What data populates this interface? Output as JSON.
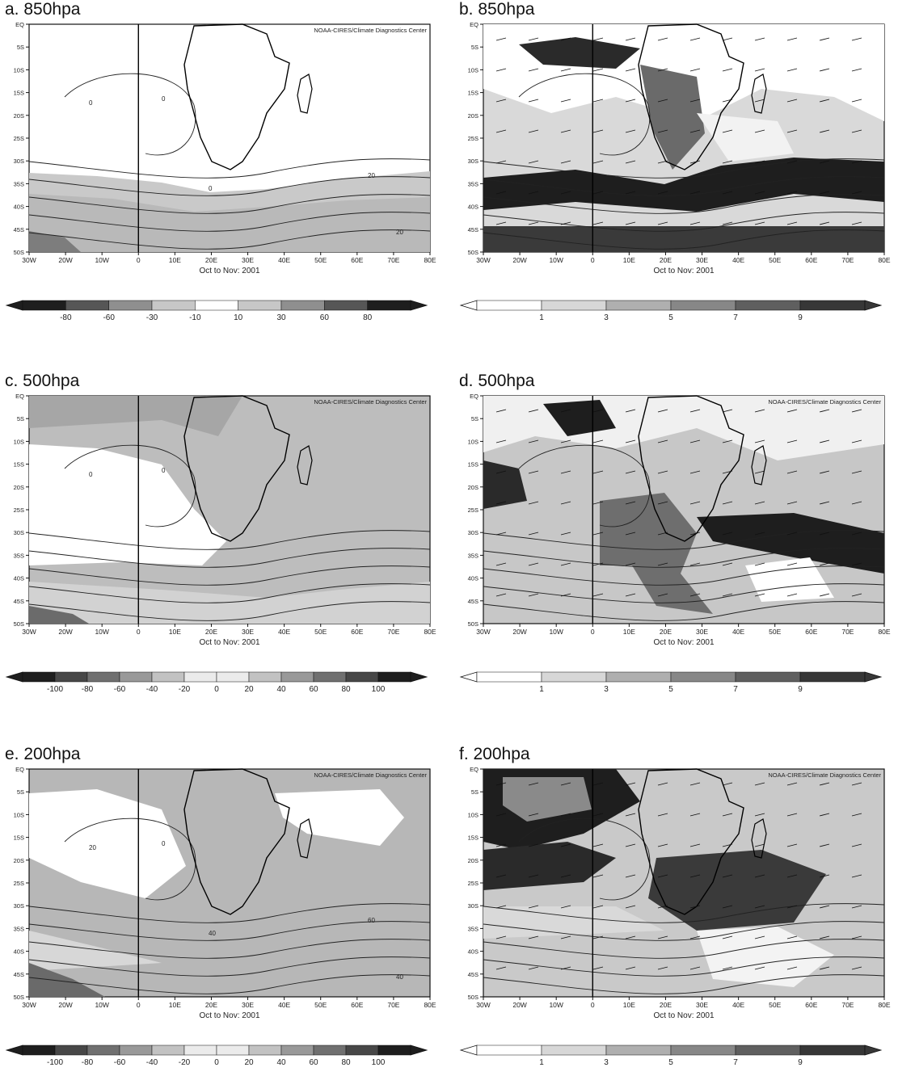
{
  "chart_data": [
    {
      "id": "a",
      "type": "heatmap",
      "title": "a. 850hpa",
      "subtitle": "Oct to Nov: 2001",
      "credit": "NOAA-CIRES/Climate Diagnostics Center",
      "x_ticks": [
        "30W",
        "20W",
        "10W",
        "0",
        "10E",
        "20E",
        "30E",
        "40E",
        "50E",
        "60E",
        "70E",
        "80E"
      ],
      "y_ticks": [
        "EQ",
        "5S",
        "10S",
        "15S",
        "20S",
        "25S",
        "30S",
        "35S",
        "40S",
        "45S",
        "50S"
      ],
      "colorbar": {
        "labels": [
          "-80",
          "-60",
          "-30",
          "-10",
          "10",
          "30",
          "60",
          "80"
        ],
        "values": [
          -80,
          -60,
          -30,
          -10,
          10,
          30,
          60,
          80
        ]
      },
      "contour_labels": [
        "0",
        "0",
        "0",
        "20",
        "20"
      ],
      "palette": "diverging"
    },
    {
      "id": "b",
      "type": "heatmap",
      "title": "b. 850hpa",
      "subtitle": "Oct to Nov: 2001",
      "x_ticks": [
        "30W",
        "20W",
        "10W",
        "0",
        "10E",
        "20E",
        "30E",
        "40E",
        "50E",
        "60E",
        "70E",
        "80E"
      ],
      "y_ticks": [
        "EQ",
        "5S",
        "10S",
        "15S",
        "20S",
        "25S",
        "30S",
        "35S",
        "40S",
        "45S",
        "50S"
      ],
      "colorbar": {
        "labels": [
          "1",
          "3",
          "5",
          "7",
          "9"
        ],
        "values": [
          1,
          3,
          5,
          7,
          9
        ]
      },
      "palette": "sequential"
    },
    {
      "id": "c",
      "type": "heatmap",
      "title": "c. 500hpa",
      "subtitle": "Oct to Nov: 2001",
      "credit": "NOAA-CIRES/Climate Diagnostics Center",
      "x_ticks": [
        "30W",
        "20W",
        "10W",
        "0",
        "10E",
        "20E",
        "30E",
        "40E",
        "50E",
        "60E",
        "70E",
        "80E"
      ],
      "y_ticks": [
        "EQ",
        "5S",
        "10S",
        "15S",
        "20S",
        "25S",
        "30S",
        "35S",
        "40S",
        "45S",
        "50S"
      ],
      "colorbar": {
        "labels": [
          "-100",
          "-80",
          "-60",
          "-40",
          "-20",
          "0",
          "20",
          "40",
          "60",
          "80",
          "100"
        ],
        "values": [
          -100,
          -80,
          -60,
          -40,
          -20,
          0,
          20,
          40,
          60,
          80,
          100
        ]
      },
      "contour_labels": [
        "0",
        "0"
      ],
      "palette": "diverging"
    },
    {
      "id": "d",
      "type": "heatmap",
      "title": "d. 500hpa",
      "subtitle": "Oct to Nov: 2001",
      "credit": "NOAA-CIRES/Climate Diagnostics Center",
      "x_ticks": [
        "30W",
        "20W",
        "10W",
        "0",
        "10E",
        "20E",
        "30E",
        "40E",
        "50E",
        "60E",
        "70E",
        "80E"
      ],
      "y_ticks": [
        "EQ",
        "5S",
        "10S",
        "15S",
        "20S",
        "25S",
        "30S",
        "35S",
        "40S",
        "45S",
        "50S"
      ],
      "colorbar": {
        "labels": [
          "1",
          "3",
          "5",
          "7",
          "9"
        ],
        "values": [
          1,
          3,
          5,
          7,
          9
        ]
      },
      "palette": "sequential"
    },
    {
      "id": "e",
      "type": "heatmap",
      "title": "e. 200hpa",
      "subtitle": "Oct to Nov: 2001",
      "credit": "NOAA-CIRES/Climate Diagnostics Center",
      "x_ticks": [
        "30W",
        "20W",
        "10W",
        "0",
        "10E",
        "20E",
        "30E",
        "40E",
        "50E",
        "60E",
        "70E",
        "80E"
      ],
      "y_ticks": [
        "EQ",
        "5S",
        "10S",
        "15S",
        "20S",
        "25S",
        "30S",
        "35S",
        "40S",
        "45S",
        "50S"
      ],
      "colorbar": {
        "labels": [
          "-100",
          "-80",
          "-60",
          "-40",
          "-20",
          "0",
          "20",
          "40",
          "60",
          "80",
          "100"
        ],
        "values": [
          -100,
          -80,
          -60,
          -40,
          -20,
          0,
          20,
          40,
          60,
          80,
          100
        ]
      },
      "contour_labels": [
        "20",
        "0",
        "40",
        "60",
        "40"
      ],
      "palette": "diverging"
    },
    {
      "id": "f",
      "type": "heatmap",
      "title": "f. 200hpa",
      "subtitle": "Oct to Nov: 2001",
      "credit": "NOAA-CIRES/Climate Diagnostics Center",
      "x_ticks": [
        "30W",
        "20W",
        "10W",
        "0",
        "10E",
        "20E",
        "30E",
        "40E",
        "50E",
        "60E",
        "70E",
        "80E"
      ],
      "y_ticks": [
        "EQ",
        "5S",
        "10S",
        "15S",
        "20S",
        "25S",
        "30S",
        "35S",
        "40S",
        "45S",
        "50S"
      ],
      "colorbar": {
        "labels": [
          "1",
          "3",
          "5",
          "7",
          "9"
        ],
        "values": [
          1,
          3,
          5,
          7,
          9
        ]
      },
      "palette": "sequential"
    }
  ]
}
